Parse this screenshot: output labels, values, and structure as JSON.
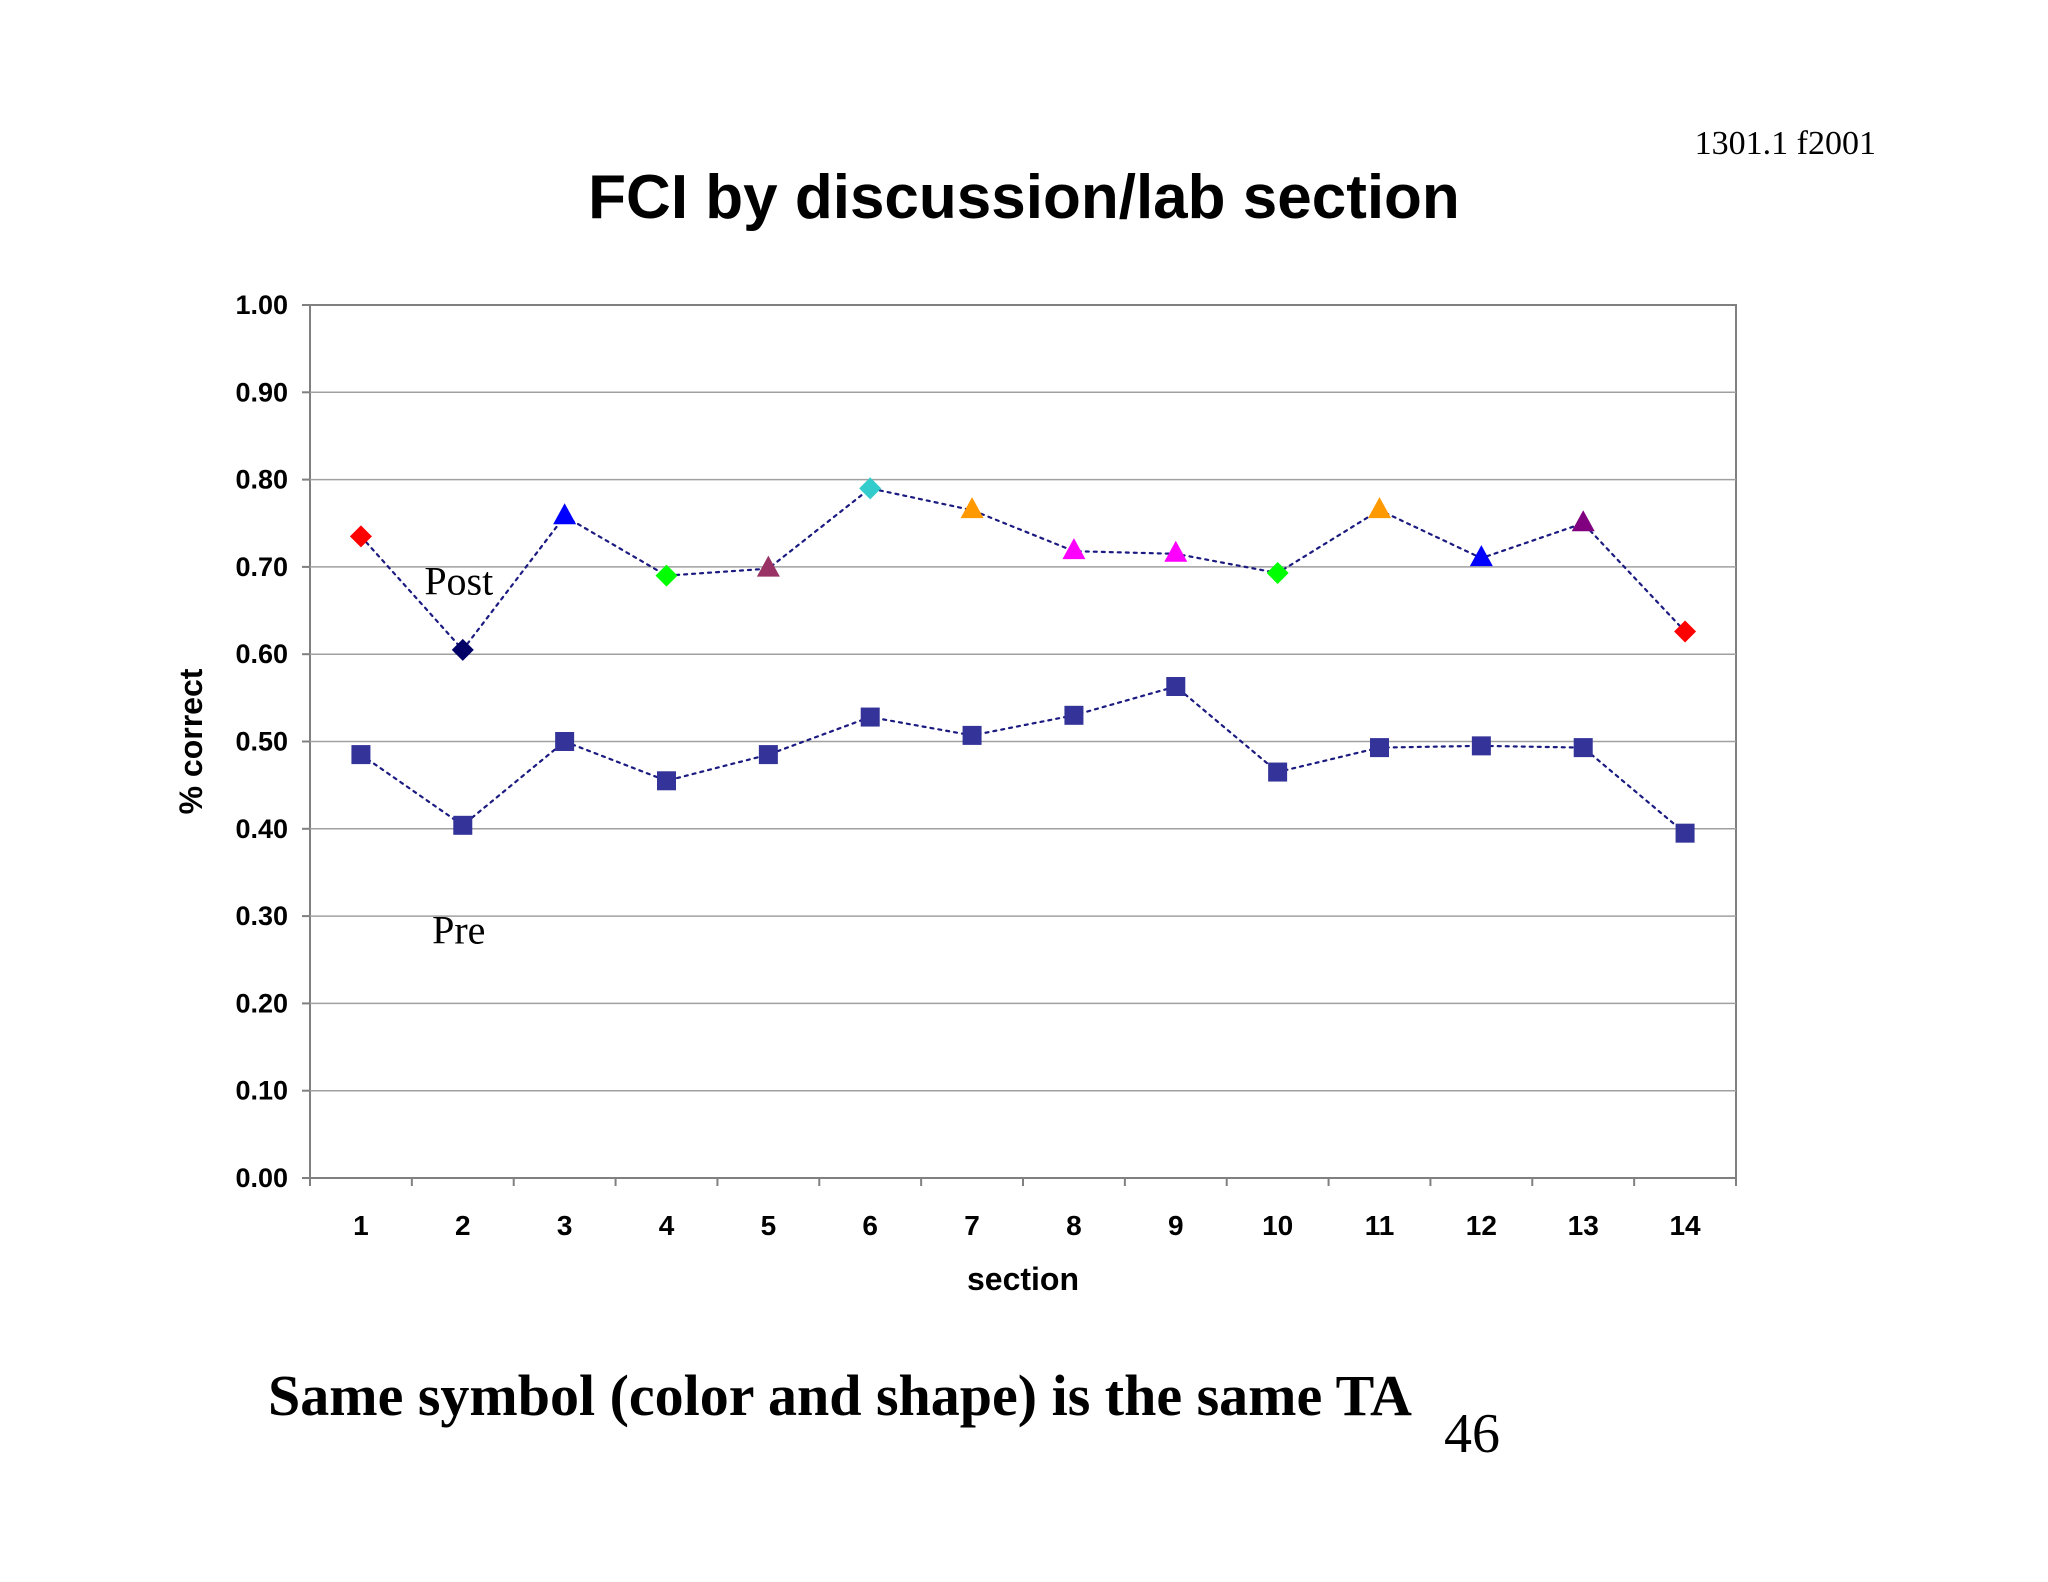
{
  "header": {
    "course_code": "1301.1 f2001"
  },
  "footer": {
    "caption": "Same symbol (color and shape) is the same TA",
    "page_number": "46"
  },
  "chart_data": {
    "type": "line",
    "title": "FCI by discussion/lab section",
    "xlabel": "section",
    "ylabel": "% correct",
    "categories": [
      "1",
      "2",
      "3",
      "4",
      "5",
      "6",
      "7",
      "8",
      "9",
      "10",
      "11",
      "12",
      "13",
      "14"
    ],
    "ylim": [
      0,
      1
    ],
    "yticks": [
      "0.00",
      "0.10",
      "0.20",
      "0.30",
      "0.40",
      "0.50",
      "0.60",
      "0.70",
      "0.80",
      "0.90",
      "1.00"
    ],
    "grid": true,
    "series": [
      {
        "name": "Post",
        "line_color": "#1a1a80",
        "line_style": "dotted",
        "values": [
          0.735,
          0.605,
          0.758,
          0.69,
          0.698,
          0.79,
          0.765,
          0.718,
          0.715,
          0.693,
          0.765,
          0.71,
          0.75,
          0.626
        ],
        "markers": [
          {
            "shape": "diamond",
            "color": "#ff0000"
          },
          {
            "shape": "diamond",
            "color": "#000066"
          },
          {
            "shape": "triangle",
            "color": "#0000ff"
          },
          {
            "shape": "diamond",
            "color": "#00ff00"
          },
          {
            "shape": "triangle",
            "color": "#993366"
          },
          {
            "shape": "diamond",
            "color": "#33cccc"
          },
          {
            "shape": "triangle",
            "color": "#ff9900"
          },
          {
            "shape": "triangle",
            "color": "#ff00ff"
          },
          {
            "shape": "triangle",
            "color": "#ff00ff"
          },
          {
            "shape": "diamond",
            "color": "#00ff00"
          },
          {
            "shape": "triangle",
            "color": "#ff9900"
          },
          {
            "shape": "triangle",
            "color": "#0000ff"
          },
          {
            "shape": "triangle",
            "color": "#800080"
          },
          {
            "shape": "diamond",
            "color": "#ff0000"
          }
        ]
      },
      {
        "name": "Pre",
        "line_color": "#1a1a80",
        "line_style": "dotted",
        "values": [
          0.485,
          0.404,
          0.5,
          0.455,
          0.485,
          0.528,
          0.507,
          0.53,
          0.563,
          0.465,
          0.493,
          0.495,
          0.493,
          0.395
        ],
        "marker_shape": "square",
        "marker_color": "#333399"
      }
    ],
    "annotations": [
      {
        "text": "Post",
        "x": 2,
        "y": 0.68
      },
      {
        "text": "Pre",
        "x": 2,
        "y": 0.28
      }
    ]
  }
}
